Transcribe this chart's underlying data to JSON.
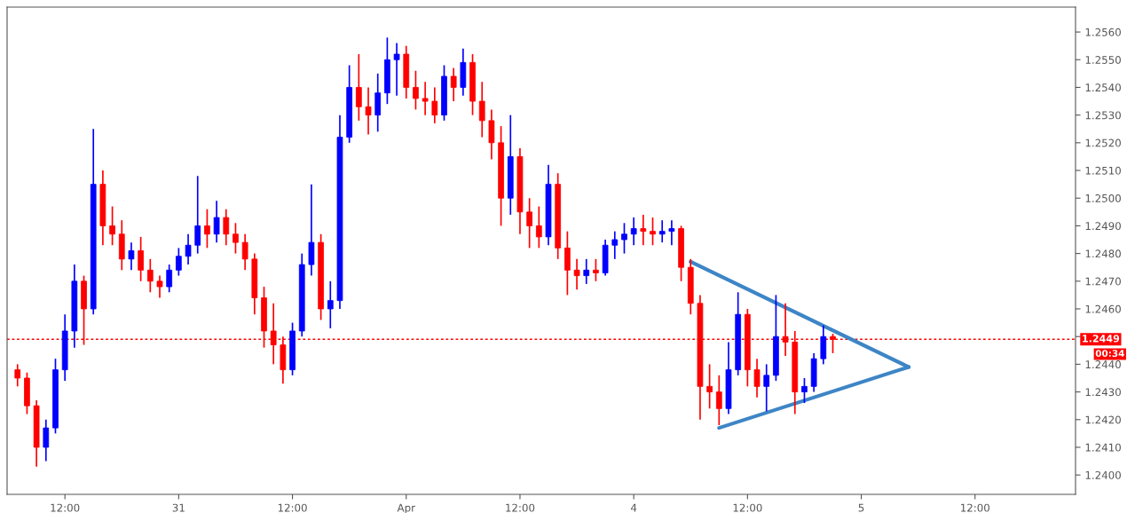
{
  "chart_data": {
    "type": "candlestick",
    "categories": [
      null,
      null,
      null,
      null,
      null,
      "12:00",
      null,
      null,
      null,
      null,
      null,
      null,
      null,
      null,
      null,
      null,
      null,
      "31",
      null,
      null,
      null,
      null,
      null,
      null,
      null,
      null,
      null,
      null,
      null,
      "12:00",
      null,
      null,
      null,
      null,
      null,
      null,
      null,
      null,
      null,
      null,
      null,
      "Apr",
      null,
      null,
      null,
      null,
      null,
      null,
      null,
      null,
      null,
      null,
      null,
      "12:00",
      null,
      null,
      null,
      null,
      null,
      null,
      null,
      null,
      null,
      null,
      null,
      "4",
      null,
      null,
      null,
      null,
      null,
      null,
      null,
      null,
      null,
      null,
      null,
      "12:00",
      null,
      null,
      null,
      null,
      null,
      null,
      null,
      null,
      null,
      null,
      null,
      "5",
      null,
      null,
      null,
      null,
      null,
      null,
      null,
      null,
      null,
      null,
      null,
      "12:00",
      null,
      null,
      null,
      null,
      null,
      null,
      null,
      null,
      null,
      null
    ],
    "ohlc": [
      [
        1.2438,
        1.244,
        1.2432,
        1.2435
      ],
      [
        1.2435,
        1.2437,
        1.2422,
        1.2425
      ],
      [
        1.2425,
        1.2427,
        1.2403,
        1.241
      ],
      [
        1.241,
        1.242,
        1.2405,
        1.2417
      ],
      [
        1.2417,
        1.2442,
        1.2415,
        1.2438
      ],
      [
        1.2438,
        1.2458,
        1.2434,
        1.2452
      ],
      [
        1.2452,
        1.2476,
        1.2446,
        1.247
      ],
      [
        1.247,
        1.2472,
        1.2447,
        1.246
      ],
      [
        1.246,
        1.2525,
        1.2458,
        1.2505
      ],
      [
        1.2505,
        1.251,
        1.2483,
        1.249
      ],
      [
        1.249,
        1.2497,
        1.2483,
        1.2487
      ],
      [
        1.2487,
        1.2492,
        1.2474,
        1.2478
      ],
      [
        1.2478,
        1.2484,
        1.2474,
        1.2481
      ],
      [
        1.2481,
        1.2486,
        1.247,
        1.2474
      ],
      [
        1.2474,
        1.2478,
        1.2466,
        1.247
      ],
      [
        1.247,
        1.2472,
        1.2464,
        1.2468
      ],
      [
        1.2468,
        1.2476,
        1.2466,
        1.2474
      ],
      [
        1.2474,
        1.2482,
        1.2472,
        1.2479
      ],
      [
        1.2479,
        1.2487,
        1.2476,
        1.2483
      ],
      [
        1.2483,
        1.2508,
        1.248,
        1.249
      ],
      [
        1.249,
        1.2496,
        1.2482,
        1.2487
      ],
      [
        1.2487,
        1.2499,
        1.2484,
        1.2493
      ],
      [
        1.2493,
        1.2496,
        1.2483,
        1.2487
      ],
      [
        1.2487,
        1.2491,
        1.248,
        1.2484
      ],
      [
        1.2484,
        1.2487,
        1.2474,
        1.2478
      ],
      [
        1.2478,
        1.248,
        1.2458,
        1.2464
      ],
      [
        1.2464,
        1.2468,
        1.2446,
        1.2452
      ],
      [
        1.2452,
        1.2462,
        1.244,
        1.2447
      ],
      [
        1.2447,
        1.245,
        1.2433,
        1.2438
      ],
      [
        1.2438,
        1.2455,
        1.2436,
        1.2452
      ],
      [
        1.2452,
        1.248,
        1.245,
        1.2476
      ],
      [
        1.2476,
        1.2505,
        1.2472,
        1.2484
      ],
      [
        1.2484,
        1.2487,
        1.2456,
        1.246
      ],
      [
        1.246,
        1.247,
        1.2453,
        1.2463
      ],
      [
        1.2463,
        1.253,
        1.246,
        1.2522
      ],
      [
        1.2522,
        1.2548,
        1.252,
        1.254
      ],
      [
        1.254,
        1.2552,
        1.2528,
        1.2533
      ],
      [
        1.2533,
        1.254,
        1.2523,
        1.253
      ],
      [
        1.253,
        1.2545,
        1.2524,
        1.2538
      ],
      [
        1.2538,
        1.2558,
        1.2534,
        1.255
      ],
      [
        1.255,
        1.2556,
        1.2537,
        1.2552
      ],
      [
        1.2552,
        1.2555,
        1.2536,
        1.254
      ],
      [
        1.254,
        1.2546,
        1.2532,
        1.2536
      ],
      [
        1.2536,
        1.2542,
        1.253,
        1.2535
      ],
      [
        1.2535,
        1.254,
        1.2527,
        1.253
      ],
      [
        1.253,
        1.2548,
        1.2528,
        1.2544
      ],
      [
        1.2544,
        1.2547,
        1.2535,
        1.254
      ],
      [
        1.254,
        1.2554,
        1.2537,
        1.2549
      ],
      [
        1.2549,
        1.2552,
        1.253,
        1.2535
      ],
      [
        1.2535,
        1.2542,
        1.2522,
        1.2528
      ],
      [
        1.2528,
        1.2532,
        1.2514,
        1.252
      ],
      [
        1.252,
        1.2526,
        1.249,
        1.25
      ],
      [
        1.25,
        1.253,
        1.2494,
        1.2515
      ],
      [
        1.2515,
        1.2518,
        1.2487,
        1.2495
      ],
      [
        1.2495,
        1.25,
        1.2482,
        1.249
      ],
      [
        1.249,
        1.2497,
        1.2482,
        1.2486
      ],
      [
        1.2486,
        1.2512,
        1.2483,
        1.2505
      ],
      [
        1.2505,
        1.2509,
        1.2478,
        1.2482
      ],
      [
        1.2482,
        1.2488,
        1.2465,
        1.2474
      ],
      [
        1.2474,
        1.2478,
        1.2467,
        1.2472
      ],
      [
        1.2472,
        1.2478,
        1.2469,
        1.2474
      ],
      [
        1.2474,
        1.2478,
        1.247,
        1.2473
      ],
      [
        1.2473,
        1.2485,
        1.2472,
        1.2483
      ],
      [
        1.2483,
        1.2488,
        1.2478,
        1.2485
      ],
      [
        1.2485,
        1.2491,
        1.248,
        1.2487
      ],
      [
        1.2487,
        1.2493,
        1.2483,
        1.2489
      ],
      [
        1.2489,
        1.2494,
        1.2483,
        1.2488
      ],
      [
        1.2488,
        1.2493,
        1.2483,
        1.2487
      ],
      [
        1.2487,
        1.2492,
        1.2484,
        1.2488
      ],
      [
        1.2488,
        1.2492,
        1.2483,
        1.2489
      ],
      [
        1.2489,
        1.249,
        1.247,
        1.2475
      ],
      [
        1.2475,
        1.2478,
        1.2458,
        1.2462
      ],
      [
        1.2462,
        1.2465,
        1.242,
        1.2432
      ],
      [
        1.2432,
        1.244,
        1.2424,
        1.243
      ],
      [
        1.243,
        1.2436,
        1.2418,
        1.2424
      ],
      [
        1.2424,
        1.2448,
        1.2422,
        1.2438
      ],
      [
        1.2438,
        1.2466,
        1.2436,
        1.2458
      ],
      [
        1.2458,
        1.246,
        1.2432,
        1.2438
      ],
      [
        1.2438,
        1.2442,
        1.2428,
        1.2432
      ],
      [
        1.2432,
        1.244,
        1.2423,
        1.2436
      ],
      [
        1.2436,
        1.2465,
        1.2434,
        1.245
      ],
      [
        1.245,
        1.2462,
        1.2443,
        1.2448
      ],
      [
        1.2448,
        1.2452,
        1.2422,
        1.243
      ],
      [
        1.243,
        1.2435,
        1.2426,
        1.2432
      ],
      [
        1.2432,
        1.2444,
        1.243,
        1.2442
      ],
      [
        1.2442,
        1.2454,
        1.244,
        1.245
      ],
      [
        1.245,
        1.2451,
        1.2444,
        1.2449
      ],
      null,
      null,
      null,
      null,
      null,
      null,
      null,
      null,
      null,
      null,
      null,
      null,
      null,
      null,
      null,
      null,
      null,
      null,
      null,
      null,
      null,
      null,
      null,
      null,
      null
    ],
    "colors": [
      "#ff0000",
      "#ff0000",
      "#ff0000",
      "#0000ff",
      "#0000ff",
      "#0000ff",
      "#0000ff",
      "#ff0000",
      "#0000ff",
      "#ff0000",
      "#ff0000",
      "#ff0000",
      "#0000ff",
      "#ff0000",
      "#ff0000",
      "#ff0000",
      "#0000ff",
      "#0000ff",
      "#0000ff",
      "#0000ff",
      "#ff0000",
      "#0000ff",
      "#ff0000",
      "#ff0000",
      "#ff0000",
      "#ff0000",
      "#ff0000",
      "#ff0000",
      "#ff0000",
      "#0000ff",
      "#0000ff",
      "#0000ff",
      "#ff0000",
      "#0000ff",
      "#0000ff",
      "#0000ff",
      "#ff0000",
      "#ff0000",
      "#0000ff",
      "#0000ff",
      "#0000ff",
      "#ff0000",
      "#ff0000",
      "#ff0000",
      "#ff0000",
      "#0000ff",
      "#ff0000",
      "#0000ff",
      "#ff0000",
      "#ff0000",
      "#ff0000",
      "#ff0000",
      "#0000ff",
      "#ff0000",
      "#ff0000",
      "#ff0000",
      "#0000ff",
      "#ff0000",
      "#ff0000",
      "#ff0000",
      "#0000ff",
      "#ff0000",
      "#0000ff",
      "#0000ff",
      "#0000ff",
      "#0000ff",
      "#ff0000",
      "#ff0000",
      "#0000ff",
      "#0000ff",
      "#ff0000",
      "#ff0000",
      "#ff0000",
      "#ff0000",
      "#ff0000",
      "#0000ff",
      "#0000ff",
      "#ff0000",
      "#ff0000",
      "#0000ff",
      "#0000ff",
      "#ff0000",
      "#ff0000",
      "#0000ff",
      "#0000ff",
      "#0000ff",
      "#ff0000",
      null,
      null,
      null,
      null,
      null,
      null,
      null,
      null,
      null,
      null,
      null,
      null,
      null,
      null,
      null,
      null,
      null,
      null,
      null,
      null,
      null,
      null,
      null,
      null,
      null
    ],
    "series": [
      {
        "type": "line",
        "color": "#3d85c6",
        "values": [
          null,
          null,
          null,
          null,
          null,
          null,
          null,
          null,
          null,
          null,
          null,
          null,
          null,
          null,
          null,
          null,
          null,
          null,
          null,
          null,
          null,
          null,
          null,
          null,
          null,
          null,
          null,
          null,
          null,
          null,
          null,
          null,
          null,
          null,
          null,
          null,
          null,
          null,
          null,
          null,
          null,
          null,
          null,
          null,
          null,
          null,
          null,
          null,
          null,
          null,
          null,
          null,
          null,
          null,
          null,
          null,
          null,
          null,
          null,
          null,
          null,
          null,
          null,
          null,
          null,
          null,
          null,
          null,
          null,
          null,
          null,
          1.2477,
          null,
          null,
          null,
          null,
          null,
          null,
          null,
          null,
          null,
          null,
          null,
          null,
          null,
          null,
          null,
          null,
          null,
          null,
          null,
          null,
          null,
          null,
          1.2439,
          null,
          null,
          null,
          null,
          null,
          null,
          null,
          null,
          null,
          null,
          null,
          null,
          null,
          null,
          null,
          null,
          null
        ]
      },
      {
        "type": "line",
        "color": "#3d85c6",
        "values": [
          null,
          null,
          null,
          null,
          null,
          null,
          null,
          null,
          null,
          null,
          null,
          null,
          null,
          null,
          null,
          null,
          null,
          null,
          null,
          null,
          null,
          null,
          null,
          null,
          null,
          null,
          null,
          null,
          null,
          null,
          null,
          null,
          null,
          null,
          null,
          null,
          null,
          null,
          null,
          null,
          null,
          null,
          null,
          null,
          null,
          null,
          null,
          null,
          null,
          null,
          null,
          null,
          null,
          null,
          null,
          null,
          null,
          null,
          null,
          null,
          null,
          null,
          null,
          null,
          null,
          null,
          null,
          null,
          null,
          null,
          null,
          null,
          null,
          null,
          1.2417,
          null,
          null,
          null,
          null,
          null,
          null,
          null,
          null,
          null,
          null,
          null,
          null,
          null,
          null,
          null,
          null,
          null,
          null,
          null,
          1.2439,
          null,
          null,
          null,
          null,
          null,
          null,
          null,
          null,
          null,
          null,
          null,
          null,
          null,
          null,
          null,
          null,
          null
        ]
      }
    ],
    "ylim": [
      1.2393,
      1.2569
    ],
    "yticks": [
      {
        "value": 1.24,
        "label": "1.2400"
      },
      {
        "value": 1.241,
        "label": "1.2410"
      },
      {
        "value": 1.242,
        "label": "1.2420"
      },
      {
        "value": 1.243,
        "label": "1.2430"
      },
      {
        "value": 1.244,
        "label": "1.2440"
      },
      {
        "value": 1.245,
        "label": null
      },
      {
        "value": 1.246,
        "label": "1.2460"
      },
      {
        "value": 1.247,
        "label": "1.2470"
      },
      {
        "value": 1.248,
        "label": "1.2480"
      },
      {
        "value": 1.249,
        "label": "1.2490"
      },
      {
        "value": 1.25,
        "label": "1.2500"
      },
      {
        "value": 1.251,
        "label": "1.2510"
      },
      {
        "value": 1.252,
        "label": "1.2520"
      },
      {
        "value": 1.253,
        "label": "1.2530"
      },
      {
        "value": 1.254,
        "label": "1.2540"
      },
      {
        "value": 1.255,
        "label": "1.2550"
      },
      {
        "value": 1.256,
        "label": "1.2560"
      }
    ],
    "ref_lines": [
      {
        "axis": "y",
        "value": 1.2449,
        "label": "1.2449",
        "color": "#ff0000",
        "line_style": "dotted"
      }
    ],
    "annotations": [
      "00:34"
    ],
    "grid": false
  }
}
